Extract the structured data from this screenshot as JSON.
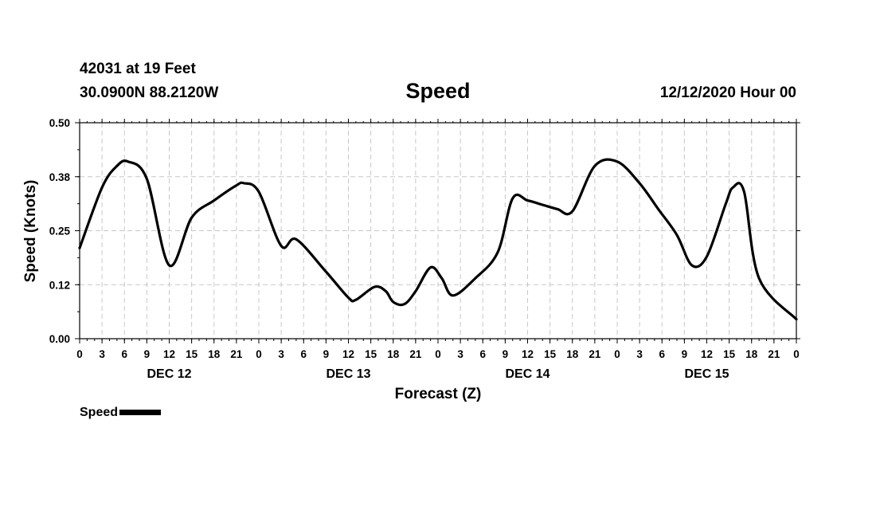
{
  "header": {
    "station": "42031 at 19 Feet",
    "coords": "30.0900N 88.2120W",
    "title": "Speed",
    "run": "12/12/2020 Hour 00"
  },
  "legend": {
    "label": "Speed"
  },
  "chart_data": {
    "type": "line",
    "title": "Speed",
    "xlabel": "Forecast (Z)",
    "ylabel": "Speed (Knots)",
    "ylim": [
      0,
      0.5
    ],
    "yticks": [
      "0.00",
      "0.12",
      "0.25",
      "0.38",
      "0.50"
    ],
    "xlim": [
      0,
      96
    ],
    "xtick_labels": [
      "0",
      "3",
      "6",
      "9",
      "12",
      "15",
      "18",
      "21",
      "0",
      "3",
      "6",
      "9",
      "12",
      "15",
      "18",
      "21",
      "0",
      "3",
      "6",
      "9",
      "12",
      "15",
      "18",
      "21",
      "0",
      "3",
      "6",
      "9",
      "12",
      "15",
      "18",
      "21",
      "0"
    ],
    "day_labels": [
      {
        "label": "DEC 12",
        "hour": 12
      },
      {
        "label": "DEC 13",
        "hour": 36
      },
      {
        "label": "DEC 14",
        "hour": 60
      },
      {
        "label": "DEC 15",
        "hour": 84
      }
    ],
    "grid": true,
    "line_color": "#000000",
    "series": [
      {
        "name": "Speed",
        "x": [
          0,
          3,
          5,
          6.5,
          9,
          12,
          15,
          18,
          21,
          22,
          24,
          27,
          29,
          33,
          36,
          37,
          39.5,
          41,
          42,
          43.5,
          45,
          47,
          48.5,
          50,
          53,
          56,
          58,
          60,
          62,
          64,
          66,
          69,
          72,
          75,
          77.5,
          80,
          82,
          84,
          86.5,
          87.5,
          89,
          91,
          96
        ],
        "values": [
          0.21,
          0.35,
          0.4,
          0.41,
          0.37,
          0.17,
          0.28,
          0.32,
          0.355,
          0.36,
          0.34,
          0.215,
          0.23,
          0.155,
          0.095,
          0.09,
          0.12,
          0.11,
          0.085,
          0.08,
          0.11,
          0.165,
          0.14,
          0.1,
          0.14,
          0.2,
          0.325,
          0.32,
          0.31,
          0.3,
          0.295,
          0.4,
          0.41,
          0.36,
          0.3,
          0.24,
          0.17,
          0.19,
          0.31,
          0.35,
          0.34,
          0.14,
          0.045
        ]
      }
    ]
  }
}
